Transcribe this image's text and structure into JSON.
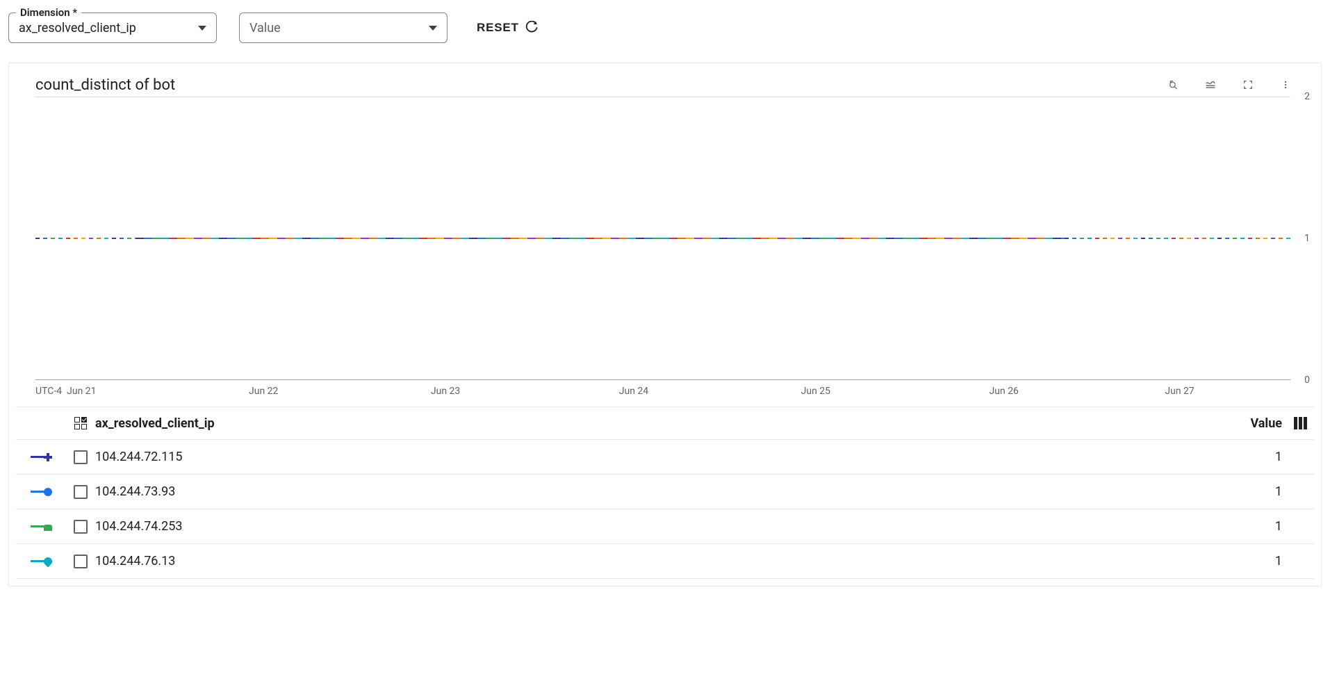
{
  "filters": {
    "dimension": {
      "label": "Dimension *",
      "value": "ax_resolved_client_ip"
    },
    "value": {
      "placeholder": "Value"
    },
    "reset": {
      "label": "RESET"
    }
  },
  "chart": {
    "title": "count_distinct of bot",
    "type": "line",
    "background_color": "#ffffff",
    "grid_color": "#dadce0",
    "axis_color": "#9aa0a6",
    "tick_color": "#5f6368",
    "tick_fontsize": 14,
    "ylim": [
      0,
      2
    ],
    "yticks": [
      {
        "v": 2,
        "pct": 0
      },
      {
        "v": 1,
        "pct": 50
      },
      {
        "v": 0,
        "pct": 100
      }
    ],
    "x_tz": "UTC-4",
    "xticks": [
      {
        "label": "Jun 21",
        "pct": 2.5
      },
      {
        "label": "Jun 22",
        "pct": 17
      },
      {
        "label": "Jun 23",
        "pct": 31.5
      },
      {
        "label": "Jun 24",
        "pct": 46.5
      },
      {
        "label": "Jun 25",
        "pct": 61
      },
      {
        "label": "Jun 26",
        "pct": 76
      },
      {
        "label": "Jun 27",
        "pct": 90
      }
    ],
    "line_segments": [
      {
        "left_pct": 0,
        "width_pct": 8,
        "color": "multi",
        "dash": true
      },
      {
        "left_pct": 8,
        "width_pct": 74,
        "color": "multi",
        "dash": false
      },
      {
        "left_pct": 82,
        "width_pct": 18,
        "color": "multi",
        "dash": true
      }
    ],
    "multi_colors": [
      "#36349e",
      "#1a73e8",
      "#34a853",
      "#00acc1",
      "#d93025",
      "#e8710a",
      "#f9ab00",
      "#9334e6",
      "#ff6d01",
      "#12b5cb"
    ]
  },
  "legend": {
    "header_name": "ax_resolved_client_ip",
    "header_value": "Value",
    "rows": [
      {
        "name": "104.244.72.115",
        "value": "1",
        "color": "#36349e",
        "glyph": "plus"
      },
      {
        "name": "104.244.73.93",
        "value": "1",
        "color": "#1a73e8",
        "glyph": "circle"
      },
      {
        "name": "104.244.74.253",
        "value": "1",
        "color": "#34a853",
        "glyph": "square-round"
      },
      {
        "name": "104.244.76.13",
        "value": "1",
        "color": "#00acc1",
        "glyph": "teardrop"
      }
    ]
  }
}
